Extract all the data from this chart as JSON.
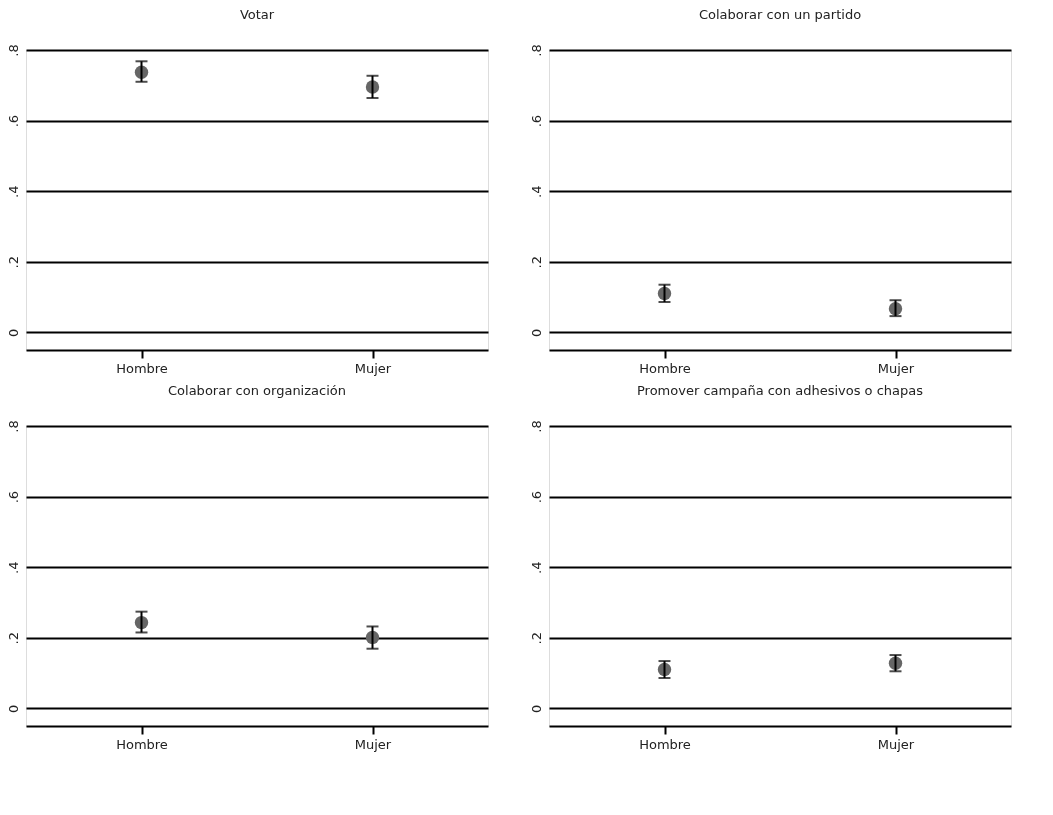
{
  "chart_data": [
    {
      "type": "scatter",
      "title": "Votar",
      "categories": [
        "Hombre",
        "Mujer"
      ],
      "values": [
        0.737,
        0.695
      ],
      "errors": [
        [
          0.71,
          0.768
        ],
        [
          0.664,
          0.727
        ]
      ],
      "color": "#666666",
      "marker": "circle",
      "grid": "y",
      "ylim": [
        -0.05,
        0.8
      ],
      "yticks": [
        {
          "value": 0,
          "label": "0"
        },
        {
          "value": 0.2,
          "label": ".2"
        },
        {
          "value": 0.4,
          "label": ".4"
        },
        {
          "value": 0.6,
          "label": ".6"
        },
        {
          "value": 0.8,
          "label": ".8"
        }
      ]
    },
    {
      "type": "scatter",
      "title": "Colaborar con un partido",
      "categories": [
        "Hombre",
        "Mujer"
      ],
      "values": [
        0.11,
        0.067
      ],
      "errors": [
        [
          0.086,
          0.135
        ],
        [
          0.046,
          0.091
        ]
      ],
      "color": "#666666",
      "marker": "circle",
      "grid": "y",
      "ylim": [
        -0.05,
        0.8
      ],
      "yticks": [
        {
          "value": 0,
          "label": "0"
        },
        {
          "value": 0.2,
          "label": ".2"
        },
        {
          "value": 0.4,
          "label": ".4"
        },
        {
          "value": 0.6,
          "label": ".6"
        },
        {
          "value": 0.8,
          "label": ".8"
        }
      ]
    },
    {
      "type": "scatter",
      "title": "Colaborar con organización",
      "categories": [
        "Hombre",
        "Mujer"
      ],
      "values": [
        0.243,
        0.201
      ],
      "errors": [
        [
          0.215,
          0.274
        ],
        [
          0.169,
          0.232
        ]
      ],
      "color": "#666666",
      "marker": "circle",
      "grid": "y",
      "ylim": [
        -0.05,
        0.8
      ],
      "yticks": [
        {
          "value": 0,
          "label": "0"
        },
        {
          "value": 0.2,
          "label": ".2"
        },
        {
          "value": 0.4,
          "label": ".4"
        },
        {
          "value": 0.6,
          "label": ".6"
        },
        {
          "value": 0.8,
          "label": ".8"
        }
      ]
    },
    {
      "type": "scatter",
      "title": "Promover campaña con adhesivos o chapas",
      "categories": [
        "Hombre",
        "Mujer"
      ],
      "values": [
        0.11,
        0.128
      ],
      "errors": [
        [
          0.086,
          0.134
        ],
        [
          0.105,
          0.151
        ]
      ],
      "color": "#666666",
      "marker": "circle",
      "grid": "y",
      "ylim": [
        -0.05,
        0.8
      ],
      "yticks": [
        {
          "value": 0,
          "label": "0"
        },
        {
          "value": 0.2,
          "label": ".2"
        },
        {
          "value": 0.4,
          "label": ".4"
        },
        {
          "value": 0.6,
          "label": ".6"
        },
        {
          "value": 0.8,
          "label": ".8"
        }
      ]
    }
  ]
}
